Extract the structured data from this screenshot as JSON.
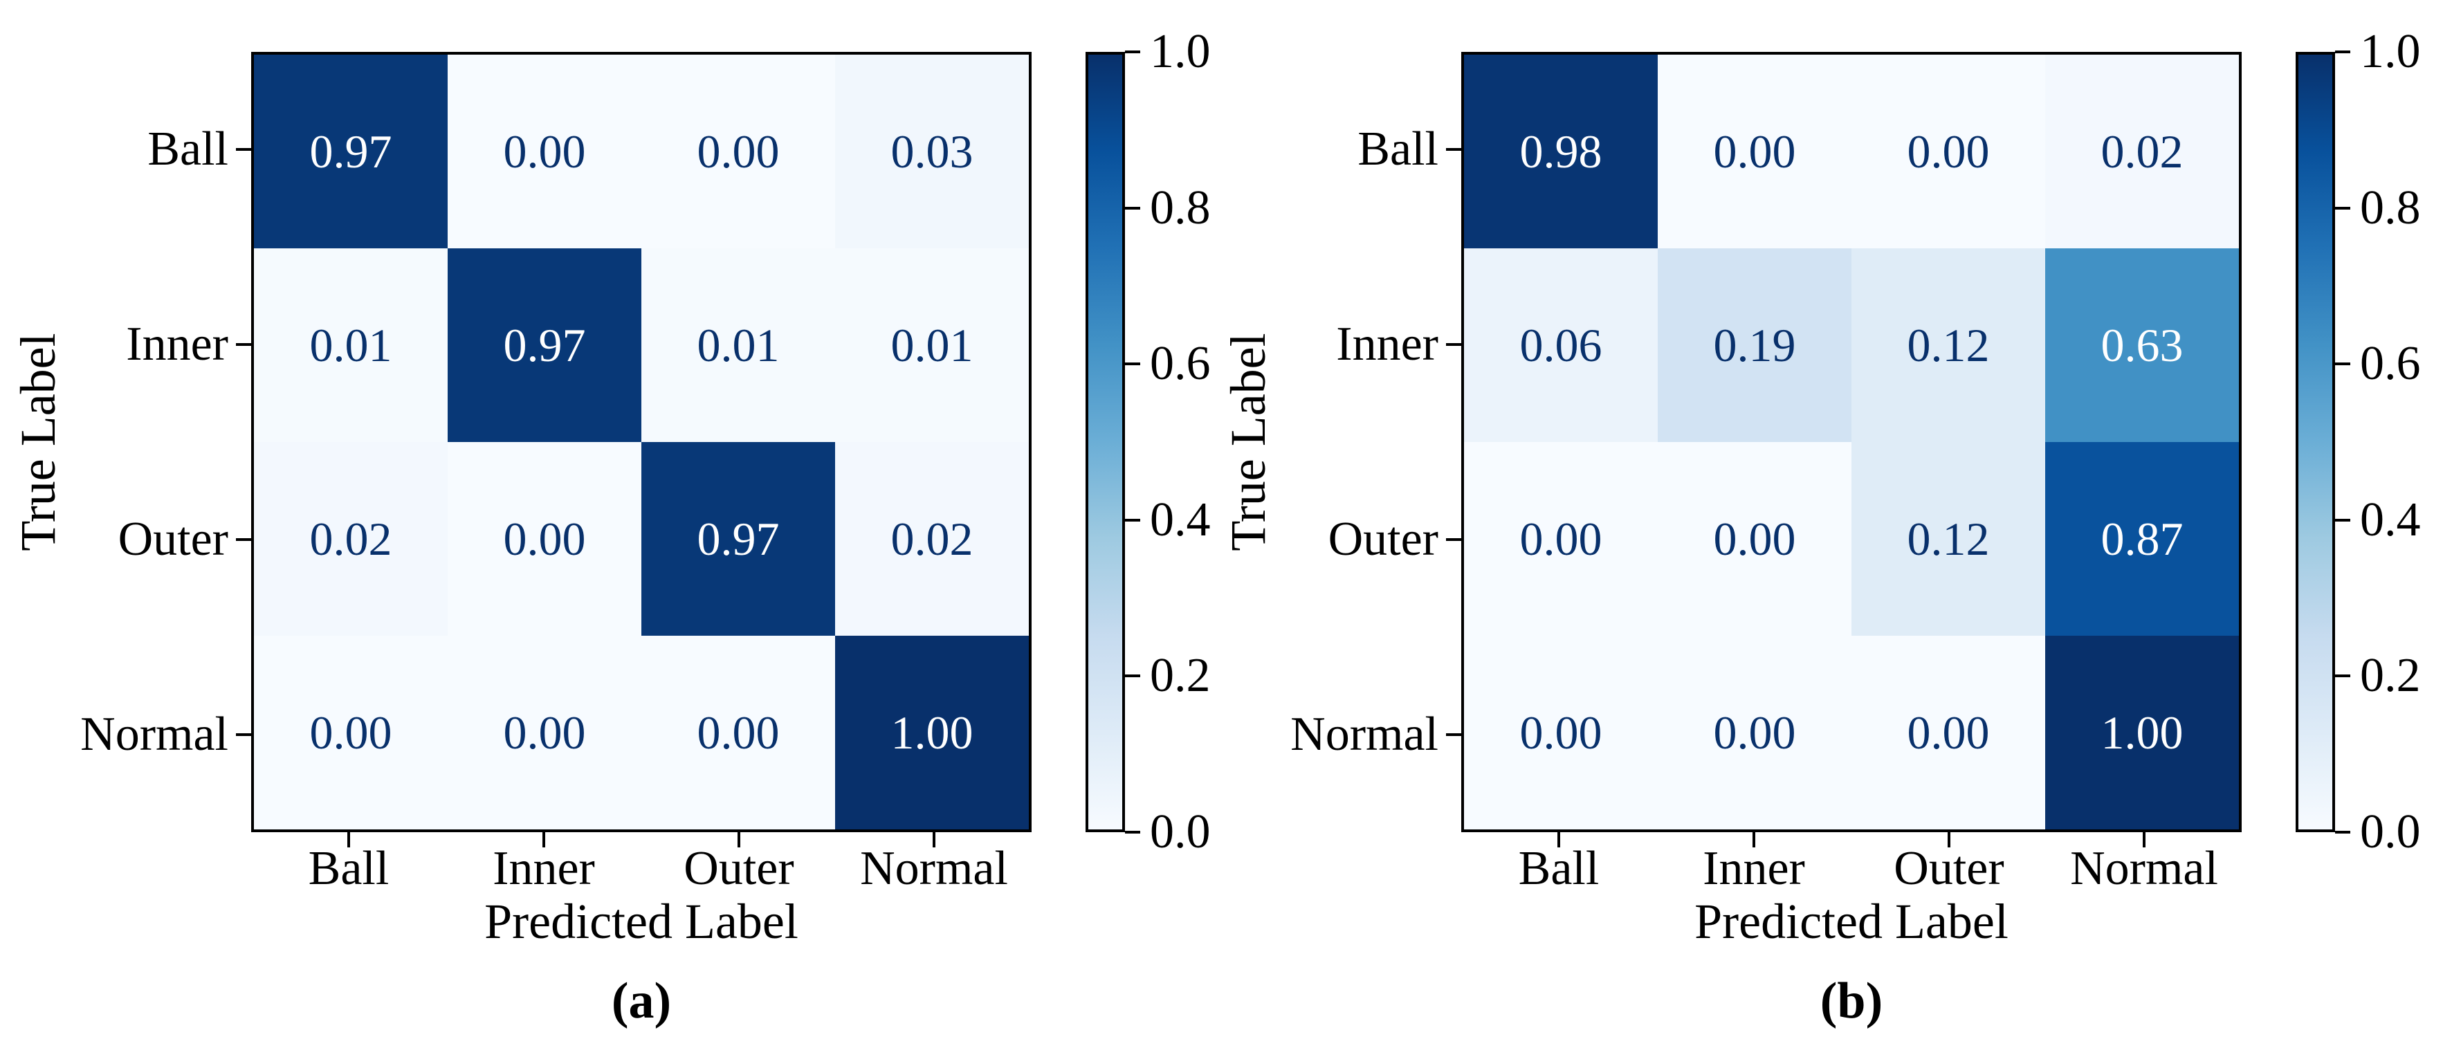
{
  "figure": {
    "background": "#ffffff",
    "colormap": "Blues",
    "colormap_stops": [
      [
        0.0,
        "#f7fbff"
      ],
      [
        0.125,
        "#deebf7"
      ],
      [
        0.25,
        "#c6dbef"
      ],
      [
        0.375,
        "#9ecae1"
      ],
      [
        0.5,
        "#6baed6"
      ],
      [
        0.625,
        "#4292c6"
      ],
      [
        0.75,
        "#2171b5"
      ],
      [
        0.875,
        "#08519c"
      ],
      [
        1.0,
        "#08306b"
      ]
    ],
    "annotation_dark": "#08306b",
    "annotation_light": "#ffffff",
    "annotation_threshold": 0.5,
    "axis_color": "#000000"
  },
  "chart_data": [
    {
      "type": "heatmap",
      "caption": "(a)",
      "xlabel": "Predicted Label",
      "ylabel": "True Label",
      "x_categories": [
        "Ball",
        "Inner",
        "Outer",
        "Normal"
      ],
      "y_categories": [
        "Ball",
        "Inner",
        "Outer",
        "Normal"
      ],
      "values": [
        [
          0.97,
          0.0,
          0.0,
          0.03
        ],
        [
          0.01,
          0.97,
          0.01,
          0.01
        ],
        [
          0.02,
          0.0,
          0.97,
          0.02
        ],
        [
          0.0,
          0.0,
          0.0,
          1.0
        ]
      ],
      "vmin": 0.0,
      "vmax": 1.0,
      "colorbar_ticks": [
        1.0,
        0.8,
        0.6,
        0.4,
        0.2,
        0.0
      ],
      "grid": false,
      "legend_position": "right-colorbar"
    },
    {
      "type": "heatmap",
      "caption": "(b)",
      "xlabel": "Predicted Label",
      "ylabel": "True Label",
      "x_categories": [
        "Ball",
        "Inner",
        "Outer",
        "Normal"
      ],
      "y_categories": [
        "Ball",
        "Inner",
        "Outer",
        "Normal"
      ],
      "values": [
        [
          0.98,
          0.0,
          0.0,
          0.02
        ],
        [
          0.06,
          0.19,
          0.12,
          0.63
        ],
        [
          0.0,
          0.0,
          0.12,
          0.87
        ],
        [
          0.0,
          0.0,
          0.0,
          1.0
        ]
      ],
      "vmin": 0.0,
      "vmax": 1.0,
      "colorbar_ticks": [
        1.0,
        0.8,
        0.6,
        0.4,
        0.2,
        0.0
      ],
      "grid": false,
      "legend_position": "right-colorbar"
    }
  ]
}
